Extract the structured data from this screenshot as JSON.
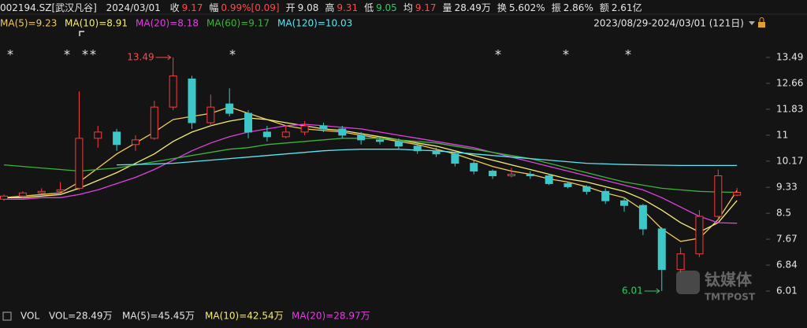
{
  "header": {
    "symbol": "002194.SZ[武汉凡谷]",
    "date": "2024/03/01",
    "fields": [
      {
        "label": "收",
        "value": "9.17",
        "color": "#ff4a4a"
      },
      {
        "label": "幅",
        "value": "0.99%[0.09]",
        "color": "#ff4a4a"
      },
      {
        "label": "开",
        "value": "9.08",
        "color": "#e6e6e6"
      },
      {
        "label": "高",
        "value": "9.31",
        "color": "#ff4a4a"
      },
      {
        "label": "低",
        "value": "9.05",
        "color": "#32c864"
      },
      {
        "label": "均",
        "value": "9.17",
        "color": "#ff4a4a"
      },
      {
        "label": "量",
        "value": "28.49万",
        "color": "#e6e6e6"
      },
      {
        "label": "换",
        "value": "5.602%",
        "color": "#e6e6e6"
      },
      {
        "label": "振",
        "value": "2.86%",
        "color": "#e6e6e6"
      },
      {
        "label": "额",
        "value": "2.61亿",
        "color": "#e6e6e6"
      }
    ],
    "range": "2023/08/29-2024/03/01 (121日)"
  },
  "chart_data": {
    "type": "candlestick",
    "ylim": [
      5.6,
      13.9
    ],
    "yticks": [
      13.49,
      12.66,
      11.83,
      11,
      10.17,
      9.33,
      8.5,
      7.67,
      6.84,
      6.01
    ],
    "up_color": "#ff3a3a",
    "down_color": "#3cc8c8",
    "ohlc": [
      [
        8.95,
        9.1,
        8.9,
        9.05
      ],
      [
        9.05,
        9.2,
        9.0,
        9.15
      ],
      [
        9.15,
        9.3,
        9.1,
        9.2
      ],
      [
        9.2,
        9.5,
        9.15,
        9.25
      ],
      [
        9.3,
        12.4,
        9.25,
        10.9
      ],
      [
        10.9,
        11.3,
        10.6,
        11.1
      ],
      [
        11.1,
        11.2,
        10.5,
        10.7
      ],
      [
        10.7,
        11.0,
        10.5,
        10.85
      ],
      [
        10.9,
        12.1,
        10.85,
        11.9
      ],
      [
        11.9,
        13.49,
        11.8,
        12.9
      ],
      [
        12.8,
        12.9,
        11.2,
        11.4
      ],
      [
        11.4,
        12.3,
        11.3,
        11.9
      ],
      [
        12.0,
        12.5,
        11.6,
        11.7
      ],
      [
        11.7,
        11.8,
        10.9,
        11.1
      ],
      [
        11.1,
        11.3,
        10.8,
        10.95
      ],
      [
        10.95,
        11.3,
        10.9,
        11.1
      ],
      [
        11.1,
        11.45,
        11.0,
        11.3
      ],
      [
        11.3,
        11.4,
        11.1,
        11.2
      ],
      [
        11.2,
        11.3,
        10.9,
        11.0
      ],
      [
        11.0,
        11.1,
        10.7,
        10.85
      ],
      [
        10.85,
        10.95,
        10.7,
        10.8
      ],
      [
        10.8,
        10.9,
        10.55,
        10.65
      ],
      [
        10.65,
        10.75,
        10.4,
        10.5
      ],
      [
        10.5,
        10.6,
        10.3,
        10.4
      ],
      [
        10.4,
        10.45,
        10.0,
        10.1
      ],
      [
        10.1,
        10.2,
        9.75,
        9.85
      ],
      [
        9.85,
        9.9,
        9.6,
        9.7
      ],
      [
        9.7,
        9.95,
        9.65,
        9.75
      ],
      [
        9.75,
        9.85,
        9.6,
        9.7
      ],
      [
        9.7,
        9.75,
        9.4,
        9.45
      ],
      [
        9.45,
        9.5,
        9.3,
        9.35
      ],
      [
        9.35,
        9.4,
        9.1,
        9.2
      ],
      [
        9.2,
        9.3,
        8.8,
        8.9
      ],
      [
        8.9,
        9.0,
        8.55,
        8.75
      ],
      [
        8.75,
        8.8,
        7.8,
        8.0
      ],
      [
        8.0,
        8.05,
        6.01,
        6.7
      ],
      [
        6.7,
        7.4,
        6.6,
        7.2
      ],
      [
        7.2,
        8.6,
        7.1,
        8.4
      ],
      [
        8.4,
        9.9,
        8.3,
        9.7
      ],
      [
        9.08,
        9.31,
        9.05,
        9.17
      ]
    ],
    "series": [
      {
        "name": "MA(5)=9.23",
        "color": "#f0c95a",
        "values": [
          9.0,
          9.05,
          9.1,
          9.15,
          9.5,
          9.95,
          10.4,
          10.75,
          11.1,
          11.5,
          11.6,
          11.7,
          11.9,
          11.7,
          11.5,
          11.3,
          11.2,
          11.15,
          11.1,
          11.0,
          10.9,
          10.8,
          10.7,
          10.55,
          10.4,
          10.2,
          10.0,
          9.85,
          9.75,
          9.6,
          9.5,
          9.35,
          9.15,
          9.0,
          8.6,
          8.0,
          7.6,
          7.7,
          8.3,
          9.23
        ]
      },
      {
        "name": "MA(10)=8.91",
        "color": "#f5ec78",
        "values": [
          9.0,
          9.0,
          9.05,
          9.1,
          9.3,
          9.55,
          9.8,
          10.1,
          10.4,
          10.8,
          11.1,
          11.3,
          11.45,
          11.55,
          11.5,
          11.4,
          11.3,
          11.2,
          11.15,
          11.05,
          10.95,
          10.85,
          10.75,
          10.65,
          10.5,
          10.35,
          10.2,
          10.05,
          9.9,
          9.75,
          9.6,
          9.5,
          9.35,
          9.2,
          8.95,
          8.6,
          8.2,
          7.9,
          8.2,
          8.91
        ]
      },
      {
        "name": "MA(20)=8.18",
        "color": "#e040e0",
        "values": [
          8.95,
          8.95,
          9.0,
          9.0,
          9.1,
          9.25,
          9.45,
          9.65,
          9.9,
          10.2,
          10.5,
          10.75,
          10.95,
          11.1,
          11.2,
          11.3,
          11.35,
          11.3,
          11.25,
          11.2,
          11.1,
          11.0,
          10.9,
          10.8,
          10.7,
          10.6,
          10.45,
          10.3,
          10.15,
          10.0,
          9.85,
          9.7,
          9.55,
          9.4,
          9.25,
          9.0,
          8.7,
          8.4,
          8.2,
          8.18
        ]
      },
      {
        "name": "MA(60)=9.17",
        "color": "#3cb43c",
        "values": [
          10.05,
          10.0,
          9.95,
          9.9,
          9.85,
          9.9,
          9.95,
          10.05,
          10.15,
          10.25,
          10.35,
          10.45,
          10.55,
          10.6,
          10.7,
          10.75,
          10.8,
          10.85,
          10.9,
          10.9,
          10.9,
          10.85,
          10.8,
          10.75,
          10.65,
          10.55,
          10.45,
          10.35,
          10.25,
          10.1,
          9.95,
          9.8,
          9.65,
          9.5,
          9.4,
          9.3,
          9.25,
          9.2,
          9.18,
          9.17
        ]
      },
      {
        "name": "MA(120)=10.03",
        "color": "#5ce6f0",
        "values": [
          null,
          null,
          null,
          null,
          null,
          null,
          10.05,
          10.06,
          10.08,
          10.1,
          10.15,
          10.2,
          10.25,
          10.3,
          10.35,
          10.4,
          10.45,
          10.5,
          10.53,
          10.55,
          10.55,
          10.55,
          10.52,
          10.5,
          10.45,
          10.4,
          10.35,
          10.3,
          10.25,
          10.2,
          10.15,
          10.1,
          10.08,
          10.06,
          10.05,
          10.04,
          10.03,
          10.03,
          10.03,
          10.03
        ]
      }
    ],
    "markers": [
      "*",
      "*",
      "*",
      "*",
      "*",
      "*",
      "*",
      "*"
    ]
  },
  "volume": {
    "title": "VOL",
    "items": [
      {
        "text": "VOL=28.49万",
        "color": "#e6e6e6"
      },
      {
        "text": "MA(5)=45.45万",
        "color": "#e6e6e6"
      },
      {
        "text": "MA(10)=42.54万",
        "color": "#f5ec78"
      },
      {
        "text": "MA(20)=28.97万",
        "color": "#e040e0"
      }
    ]
  },
  "watermark": {
    "name": "钛媒体",
    "sub": "TMTPOST"
  }
}
